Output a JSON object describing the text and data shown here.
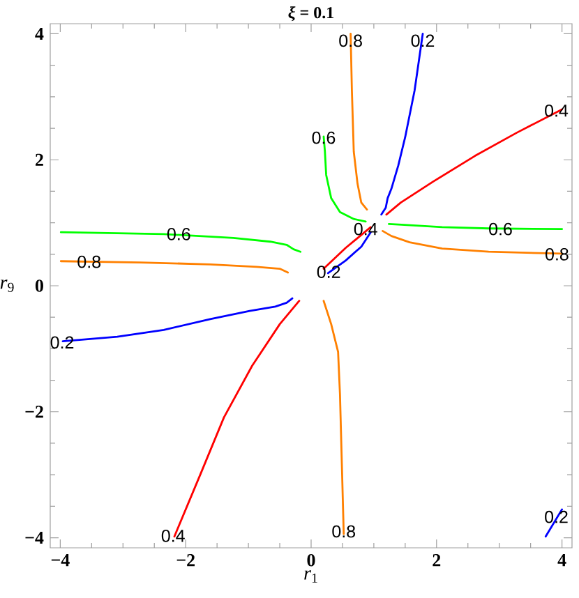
{
  "chart_data": {
    "type": "line",
    "title": "*ξ* = 0.1",
    "xlabel": "*r*$_{1}$",
    "ylabel": "*r*$_{9}$",
    "xlim": [
      -4.16,
      4.16
    ],
    "ylim": [
      -4.16,
      4.16
    ],
    "xticks": [
      {
        "value": -4,
        "label": "−4"
      },
      {
        "value": -3.5,
        "label": null
      },
      {
        "value": -3,
        "label": null
      },
      {
        "value": -2.5,
        "label": null
      },
      {
        "value": -2,
        "label": "−2"
      },
      {
        "value": -1.5,
        "label": null
      },
      {
        "value": -1,
        "label": null
      },
      {
        "value": -0.5,
        "label": null
      },
      0,
      {
        "value": 0.5,
        "label": null
      },
      {
        "value": 1,
        "label": null
      },
      {
        "value": 1.5,
        "label": null
      },
      2,
      {
        "value": 2.5,
        "label": null
      },
      {
        "value": 3,
        "label": null
      },
      {
        "value": 3.5,
        "label": null
      },
      4
    ],
    "yticks": [
      {
        "value": -4,
        "label": "−4"
      },
      {
        "value": -3.5,
        "label": null
      },
      {
        "value": -3,
        "label": null
      },
      {
        "value": -2.5,
        "label": null
      },
      {
        "value": -2,
        "label": "−2"
      },
      {
        "value": -1.5,
        "label": null
      },
      {
        "value": -1,
        "label": null
      },
      {
        "value": -0.5,
        "label": null
      },
      0,
      {
        "value": 0.5,
        "label": null
      },
      {
        "value": 1,
        "label": null
      },
      {
        "value": 1.5,
        "label": null
      },
      2,
      {
        "value": 2.5,
        "label": null
      },
      {
        "value": 3,
        "label": null
      },
      {
        "value": 3.5,
        "label": null
      },
      4
    ],
    "marker": "none",
    "line_style": "solid",
    "series": [
      {
        "color": "#ff8000",
        "x": [
          0.63,
          0.65,
          0.68,
          0.74,
          0.8,
          0.89
        ],
        "values": [
          4.0,
          3.1,
          2.13,
          1.62,
          1.32,
          1.21
        ]
      },
      {
        "color": "#0000ff",
        "x": [
          1.78,
          1.65,
          1.5,
          1.39,
          1.28,
          1.22,
          1.19,
          1.12
        ],
        "values": [
          4.0,
          3.1,
          2.36,
          1.91,
          1.54,
          1.39,
          1.24,
          1.13
        ]
      },
      {
        "color": "#ff0000",
        "x": [
          1.2,
          1.43,
          1.94,
          2.61,
          3.28,
          4.0
        ],
        "values": [
          1.13,
          1.32,
          1.65,
          2.06,
          2.43,
          2.8
        ]
      },
      {
        "color": "#00ff00",
        "x": [
          0.2,
          0.22,
          0.24,
          0.32,
          0.46,
          0.68,
          0.87
        ],
        "values": [
          2.37,
          2.13,
          1.76,
          1.39,
          1.17,
          1.06,
          1.02
        ]
      },
      {
        "color": "#00ff00",
        "x": [
          1.24,
          1.44,
          2.09,
          2.83,
          4.0
        ],
        "values": [
          0.98,
          0.97,
          0.93,
          0.91,
          0.9
        ]
      },
      {
        "color": "#ff8000",
        "x": [
          1.14,
          1.28,
          1.57,
          2.09,
          2.83,
          4.0
        ],
        "values": [
          0.87,
          0.79,
          0.69,
          0.59,
          0.54,
          0.51
        ]
      },
      {
        "color": "#ff0000",
        "x": [
          0.2,
          0.55,
          0.95
        ],
        "values": [
          0.27,
          0.6,
          0.93
        ]
      },
      {
        "color": "#0000ff",
        "x": [
          0.27,
          0.55,
          0.8,
          0.95
        ],
        "values": [
          0.2,
          0.4,
          0.62,
          0.85
        ]
      },
      {
        "color": "#00ff00",
        "x": [
          -3.99,
          -2.35,
          -1.24,
          -0.65,
          -0.39,
          -0.28,
          -0.17
        ],
        "values": [
          0.85,
          0.82,
          0.76,
          0.7,
          0.65,
          0.58,
          0.54
        ]
      },
      {
        "color": "#ff8000",
        "x": [
          -3.99,
          -2.72,
          -1.61,
          -0.87,
          -0.5,
          -0.37
        ],
        "values": [
          0.39,
          0.37,
          0.34,
          0.3,
          0.27,
          0.21
        ]
      },
      {
        "color": "#0000ff",
        "x": [
          -3.96,
          -3.09,
          -2.35,
          -1.61,
          -0.98,
          -0.57,
          -0.39,
          -0.3
        ],
        "values": [
          -0.88,
          -0.81,
          -0.7,
          -0.53,
          -0.4,
          -0.33,
          -0.27,
          -0.2
        ]
      },
      {
        "color": "#ff0000",
        "x": [
          -2.18,
          -1.76,
          -1.39,
          -0.94,
          -0.5,
          -0.19
        ],
        "values": [
          -3.98,
          -2.98,
          -2.09,
          -1.27,
          -0.61,
          -0.24
        ]
      },
      {
        "color": "#ff8000",
        "x": [
          0.2,
          0.32,
          0.43,
          0.46,
          0.49,
          0.52
        ],
        "values": [
          -0.24,
          -0.61,
          -1.05,
          -1.72,
          -2.83,
          -3.94
        ]
      },
      {
        "color": "#0000ff",
        "x": [
          3.74,
          4.0
        ],
        "values": [
          -3.98,
          -3.55
        ]
      }
    ],
    "annotations": [
      {
        "text": "0.8",
        "x": 0.63,
        "y": 3.89
      },
      {
        "text": "0.2",
        "x": 1.78,
        "y": 3.89
      },
      {
        "text": "0.4",
        "x": 3.91,
        "y": 2.78
      },
      {
        "text": "0.6",
        "x": 0.2,
        "y": 2.35
      },
      {
        "text": "0.6",
        "x": 3.02,
        "y": 0.9
      },
      {
        "text": "0.8",
        "x": 3.92,
        "y": 0.5
      },
      {
        "text": "0.4",
        "x": 0.87,
        "y": 0.9
      },
      {
        "text": "0.2",
        "x": 0.28,
        "y": 0.22
      },
      {
        "text": "0.6",
        "x": -2.11,
        "y": 0.82
      },
      {
        "text": "0.8",
        "x": -3.54,
        "y": 0.38
      },
      {
        "text": "0.2",
        "x": -3.97,
        "y": -0.9
      },
      {
        "text": "0.4",
        "x": -2.2,
        "y": -3.97
      },
      {
        "text": "0.8",
        "x": 0.52,
        "y": -3.9
      },
      {
        "text": "0.2",
        "x": 3.91,
        "y": -3.67
      }
    ]
  }
}
